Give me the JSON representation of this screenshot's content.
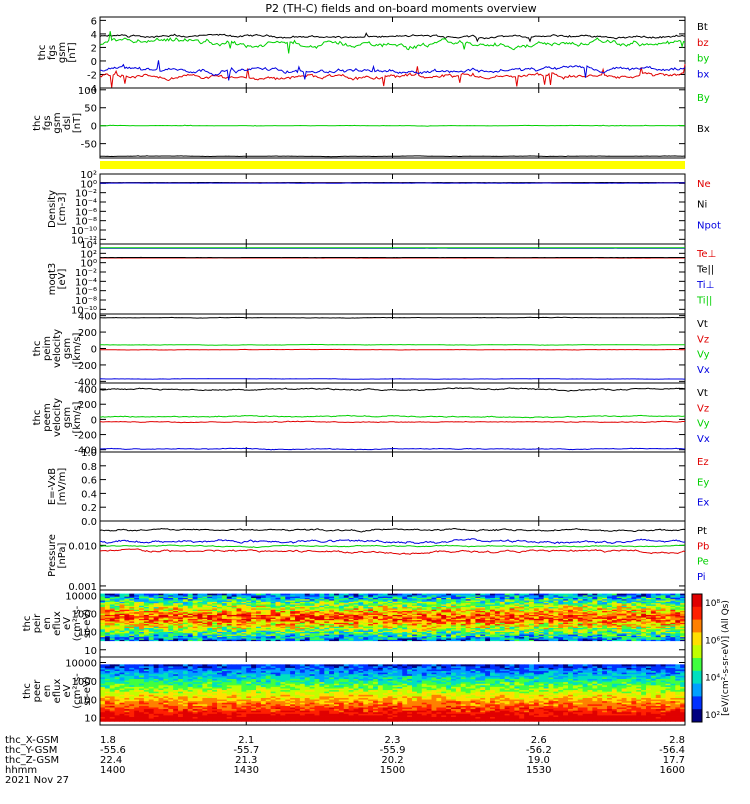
{
  "title": "P2 (TH-C) fields and on-board moments overview",
  "footer": {
    "rows": [
      {
        "label": "thc_X-GSM",
        "values": [
          "1.8",
          "2.1",
          "2.3",
          "2.6",
          "2.8"
        ]
      },
      {
        "label": "thc_Y-GSM",
        "values": [
          "-55.6",
          "-55.7",
          "-55.9",
          "-56.2",
          "-56.4"
        ]
      },
      {
        "label": "thc_Z-GSM",
        "values": [
          "22.4",
          "21.3",
          "20.2",
          "19.0",
          "17.7"
        ]
      },
      {
        "label": "hhmm",
        "values": [
          "1400",
          "1430",
          "1500",
          "1530",
          "1600"
        ]
      }
    ],
    "date": "2021 Nov 27"
  },
  "colors": {
    "black": "#000000",
    "red": "#e00000",
    "green": "#00d000",
    "blue": "#0000e0",
    "yellow": "#ffff00"
  },
  "chart_data": [
    {
      "type": "line",
      "ylabel": [
        "thc",
        "fgs",
        "gsm",
        "[nT]"
      ],
      "ylim": [
        -4,
        6.5
      ],
      "yticks": [
        "6",
        "4",
        "2",
        "0",
        "-2",
        "-4"
      ],
      "yticks_values": [
        6,
        4,
        2,
        0,
        -2,
        -4
      ],
      "series": [
        {
          "name": "Bt",
          "color": "black",
          "level": 3.6,
          "noise": 0.2,
          "spikes": 0.3
        },
        {
          "name": "bz",
          "color": "red",
          "level": -2.3,
          "noise": 0.35,
          "spikes": 0.9
        },
        {
          "name": "by",
          "color": "green",
          "level": 2.5,
          "noise": 0.45,
          "spikes": 1.0
        },
        {
          "name": "bx",
          "color": "blue",
          "level": -1.3,
          "noise": 0.35,
          "spikes": 0.8
        }
      ]
    },
    {
      "type": "line",
      "ylabel": [
        "thc",
        "fgs",
        "gsm",
        "dsl",
        "[nT]"
      ],
      "ylim": [
        -90,
        105
      ],
      "yticks": [
        "100",
        "50",
        "0",
        "-50"
      ],
      "yticks_values": [
        100,
        50,
        0,
        -50
      ],
      "series": [
        {
          "name": "By",
          "color": "green",
          "level": 0,
          "noise": 0.5,
          "spikes": 0.5
        },
        {
          "name": "Bx",
          "color": "black",
          "level": -85,
          "noise": 0.5,
          "spikes": 0.3
        }
      ]
    },
    {
      "type": "line",
      "log": true,
      "ylabel": [
        "Density",
        "[cm-3]"
      ],
      "ylim": [
        -13,
        2
      ],
      "yticks": [
        "10²",
        "10⁰",
        "10⁻²",
        "10⁻⁴",
        "10⁻⁶",
        "10⁻⁸",
        "10⁻¹⁰",
        "10⁻¹²"
      ],
      "yticks_values": [
        2,
        0,
        -2,
        -4,
        -6,
        -8,
        -10,
        -12
      ],
      "series": [
        {
          "name": "Ne",
          "color": "red",
          "level": 0.1,
          "noise": 0.02,
          "spikes": 0
        },
        {
          "name": "Ni",
          "color": "black",
          "level": 0.15,
          "noise": 0.02,
          "spikes": 0
        },
        {
          "name": "Npot",
          "color": "blue",
          "level": 0.05,
          "noise": 0.02,
          "spikes": 0
        }
      ]
    },
    {
      "type": "line",
      "log": true,
      "ylabel": [
        "moqt3",
        "[eV]"
      ],
      "ylim": [
        -11,
        4
      ],
      "yticks": [
        "10⁴",
        "10²",
        "10⁰",
        "10⁻²",
        "10⁻⁴",
        "10⁻⁶",
        "10⁻⁸",
        "10⁻¹⁰"
      ],
      "yticks_values": [
        4,
        2,
        0,
        -2,
        -4,
        -6,
        -8,
        -10
      ],
      "series": [
        {
          "name": "Te⊥",
          "color": "red",
          "level": 1.0,
          "noise": 0.01,
          "spikes": 0
        },
        {
          "name": "Te||",
          "color": "black",
          "level": 1.1,
          "noise": 0.01,
          "spikes": 0
        },
        {
          "name": "Ti⊥",
          "color": "blue",
          "level": 3.1,
          "noise": 0.01,
          "spikes": 0
        },
        {
          "name": "Ti||",
          "color": "green",
          "level": 3.2,
          "noise": 0.01,
          "spikes": 0
        }
      ]
    },
    {
      "type": "line",
      "ylabel": [
        "thc",
        "peim",
        "velocity",
        "gsm",
        "[km/s]"
      ],
      "ylim": [
        -420,
        420
      ],
      "yticks": [
        "400",
        "200",
        "0",
        "-200",
        "-400"
      ],
      "yticks_values": [
        400,
        200,
        0,
        -200,
        -400
      ],
      "series": [
        {
          "name": "Vt",
          "color": "black",
          "level": 375,
          "noise": 2.5,
          "spikes": 0
        },
        {
          "name": "Vz",
          "color": "red",
          "level": -15,
          "noise": 2,
          "spikes": 0
        },
        {
          "name": "Vy",
          "color": "green",
          "level": 45,
          "noise": 2.5,
          "spikes": 0
        },
        {
          "name": "Vx",
          "color": "blue",
          "level": -370,
          "noise": 2,
          "spikes": 0
        }
      ]
    },
    {
      "type": "line",
      "ylabel": [
        "thc",
        "peem",
        "velocity",
        "gsm",
        "[km/s]"
      ],
      "ylim": [
        -430,
        480
      ],
      "yticks": [
        "400",
        "200",
        "0",
        "-200",
        "-400"
      ],
      "yticks_values": [
        400,
        200,
        0,
        -200,
        -400
      ],
      "series": [
        {
          "name": "Vt",
          "color": "black",
          "level": 395,
          "noise": 10,
          "spikes": 0
        },
        {
          "name": "Vz",
          "color": "red",
          "level": -30,
          "noise": 6,
          "spikes": 0
        },
        {
          "name": "Vy",
          "color": "green",
          "level": 35,
          "noise": 8,
          "spikes": 0
        },
        {
          "name": "Vx",
          "color": "blue",
          "level": -390,
          "noise": 6,
          "spikes": 0
        }
      ]
    },
    {
      "type": "line",
      "ylabel": [
        "E=-VxB",
        "[mV/m]"
      ],
      "ylim": [
        0,
        1.0
      ],
      "yticks": [
        "1.0",
        "0.8",
        "0.6",
        "0.4",
        "0.2",
        "0.0"
      ],
      "yticks_values": [
        1.0,
        0.8,
        0.6,
        0.4,
        0.2,
        0.0
      ],
      "series": [
        {
          "name": "Ez",
          "color": "red"
        },
        {
          "name": "Ey",
          "color": "green"
        },
        {
          "name": "Ex",
          "color": "blue"
        }
      ]
    },
    {
      "type": "line",
      "log": true,
      "ylabel": [
        "Pressure",
        "[nPa]"
      ],
      "ylim": [
        -3.1,
        -1.4
      ],
      "yticks": [
        "0.010",
        "0.001"
      ],
      "yticks_values": [
        -2,
        -3
      ],
      "series": [
        {
          "name": "Pt",
          "color": "black",
          "level": -1.62,
          "noise": 0.025,
          "spikes": 0
        },
        {
          "name": "Pb",
          "color": "red",
          "level": -2.15,
          "noise": 0.03,
          "spikes": 0
        },
        {
          "name": "Pe",
          "color": "green",
          "level": -2.02,
          "noise": 0.015,
          "spikes": 0
        },
        {
          "name": "Pi",
          "color": "blue",
          "level": -1.9,
          "noise": 0.035,
          "spikes": 0
        }
      ]
    },
    {
      "type": "heatmap",
      "ylabel": [
        "thc",
        "peir",
        "en",
        "eflux",
        "eV",
        "(cm²-s-",
        "sr-eV)"
      ],
      "ylim": [
        0.6,
        4.3
      ],
      "yticks": [
        "10000",
        "1000",
        "100",
        "10"
      ],
      "yticks_values": [
        4,
        3,
        2,
        1
      ],
      "energy_log_range": [
        1.5,
        4.1
      ]
    },
    {
      "type": "heatmap",
      "ylabel": [
        "thc",
        "peer",
        "en",
        "eflux",
        "eV",
        "(cm²-s-",
        "sr-eV)"
      ],
      "ylim": [
        0.6,
        4.3
      ],
      "yticks": [
        "10000",
        "1000",
        "100",
        "10"
      ],
      "yticks_values": [
        4,
        3,
        2,
        1
      ],
      "energy_log_range": [
        0.8,
        3.9
      ]
    }
  ],
  "colorbar": {
    "label": "[eV/(cm²-s-sr-eV)] (All Qs)",
    "ticks": [
      "10⁸",
      "10⁶",
      "10⁴",
      "10²"
    ]
  },
  "x_axis": {
    "ticks": 5
  }
}
